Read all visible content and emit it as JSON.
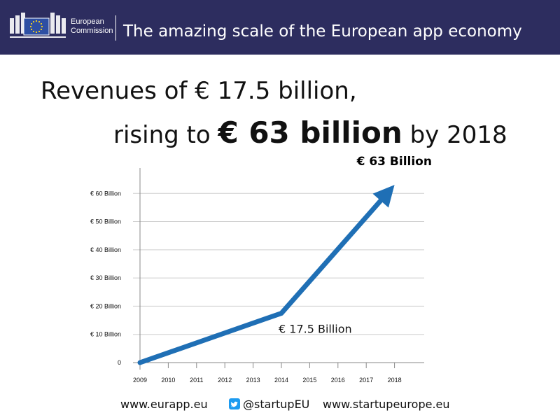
{
  "header": {
    "org_line1": "European",
    "org_line2": "Commission",
    "title": "The amazing scale of the European app economy",
    "colors": {
      "background": "#2d2d5f",
      "flag": "#2e4fa3",
      "stars": "#ffd617"
    }
  },
  "headline": {
    "line1": "Revenues of € 17.5 billion,",
    "line2_pre": "rising to ",
    "line2_big": "€ 63 billion",
    "line2_post": " by 2018"
  },
  "chart_data": {
    "type": "line",
    "title": "",
    "xlabel": "",
    "ylabel": "",
    "categories": [
      "2009",
      "2010",
      "2011",
      "2012",
      "2013",
      "2014",
      "2015",
      "2016",
      "2017",
      "2018"
    ],
    "yticks": [
      {
        "value": 0,
        "label": "0"
      },
      {
        "value": 10,
        "label": "€ 10 Billion"
      },
      {
        "value": 20,
        "label": "€ 20 Billion"
      },
      {
        "value": 30,
        "label": "€ 30 Billion"
      },
      {
        "value": 40,
        "label": "€ 40 Billion"
      },
      {
        "value": 50,
        "label": "€ 50 Billion"
      },
      {
        "value": 60,
        "label": "€ 60 Billion"
      }
    ],
    "ylim": [
      0,
      69
    ],
    "grid": true,
    "series": [
      {
        "points": [
          {
            "x": "2009",
            "y": 0
          },
          {
            "x": "2014",
            "y": 17.5
          },
          {
            "x": "2018",
            "y": 63
          }
        ],
        "color": "#1f6fb5",
        "arrow_end": true
      }
    ],
    "annotations": [
      {
        "text": "€ 17.5 Billion",
        "x": "2014",
        "y": 17.5,
        "bold": false
      },
      {
        "text": "€ 63 Billion",
        "x": "2018",
        "y": 63,
        "bold": true
      }
    ]
  },
  "footer": {
    "link1": "www.eurapp.eu",
    "twitter_handle": "@startupEU",
    "link3": "www.startupeurope.eu",
    "icon": "twitter-icon"
  }
}
